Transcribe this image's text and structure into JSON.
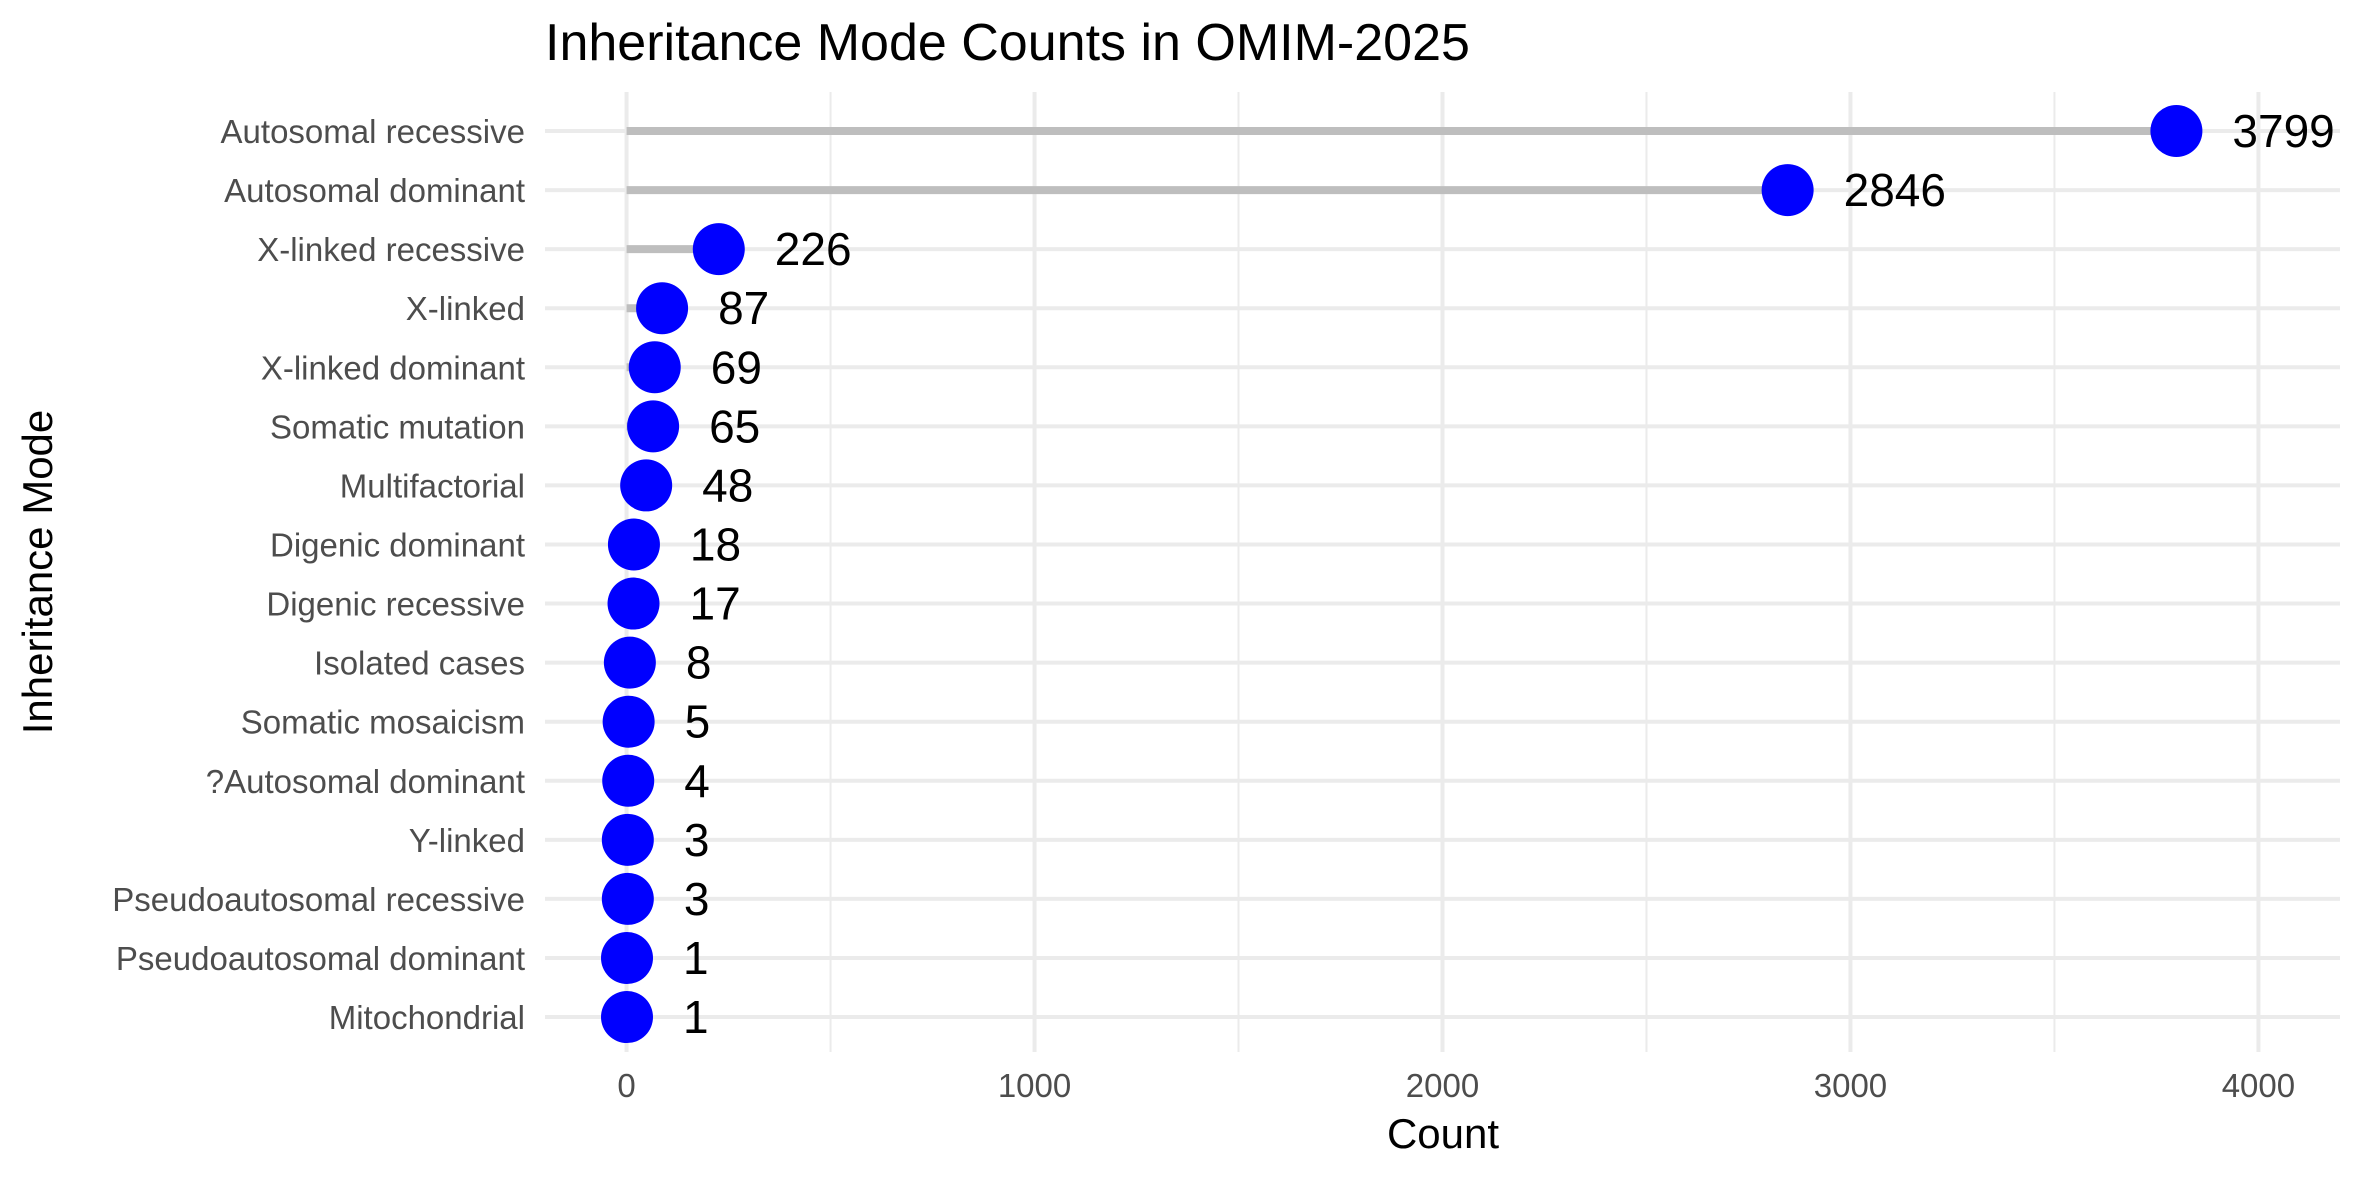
{
  "chart_data": {
    "type": "lollipop",
    "title": "Inheritance Mode Counts in OMIM-2025",
    "xlabel": "Count",
    "ylabel": "Inheritance Mode",
    "xlim": [
      -200,
      4200
    ],
    "x_ticks": [
      0,
      1000,
      2000,
      3000,
      4000
    ],
    "x_minor_ticks": [
      500,
      1500,
      2500,
      3500
    ],
    "grid": true,
    "orientation": "horizontal",
    "categories": [
      "Autosomal recessive",
      "Autosomal dominant",
      "X-linked recessive",
      "X-linked",
      "X-linked dominant",
      "Somatic mutation",
      "Multifactorial",
      "Digenic dominant",
      "Digenic recessive",
      "Isolated cases",
      "Somatic mosaicism",
      "?Autosomal dominant",
      "Y-linked",
      "Pseudoautosomal recessive",
      "Pseudoautosomal dominant",
      "Mitochondrial"
    ],
    "values": [
      3799,
      2846,
      226,
      87,
      69,
      65,
      48,
      18,
      17,
      8,
      5,
      4,
      3,
      3,
      1,
      1
    ],
    "point_color": "#0000ff",
    "stem_color": "#bebebe",
    "grid_color": "#ebebeb"
  }
}
